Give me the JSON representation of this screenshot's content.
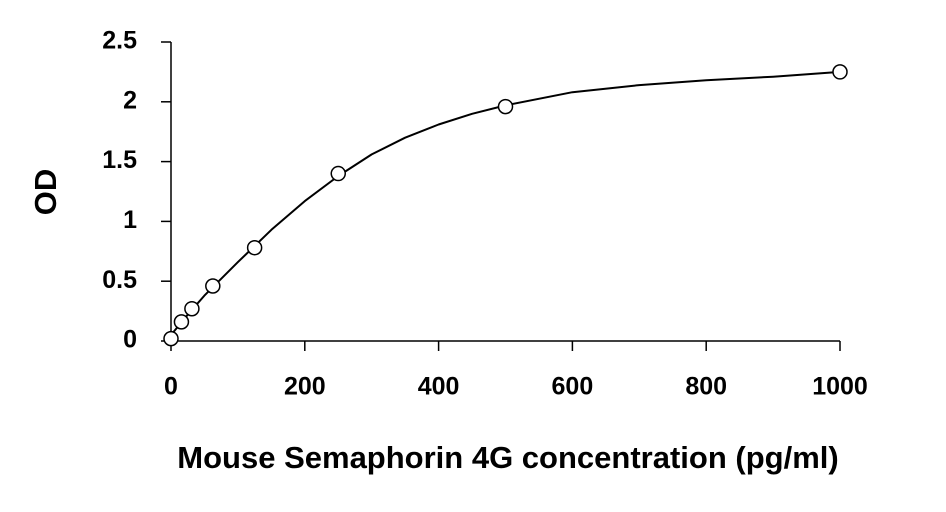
{
  "chart_data": {
    "type": "scatter",
    "x_label": "Mouse Semaphorin 4G concentration (pg/ml)",
    "y_label": "OD",
    "x": [
      0,
      15.6,
      31.25,
      62.5,
      125,
      250,
      500,
      1000
    ],
    "values": [
      0.02,
      0.16,
      0.27,
      0.46,
      0.78,
      1.4,
      1.96,
      2.25
    ],
    "color": "#000000",
    "curve": {
      "x": [
        0,
        25,
        50,
        100,
        150,
        200,
        250,
        300,
        350,
        400,
        450,
        500,
        600,
        700,
        800,
        900,
        1000
      ],
      "values": [
        0.05,
        0.22,
        0.38,
        0.66,
        0.93,
        1.17,
        1.38,
        1.56,
        1.7,
        1.81,
        1.9,
        1.97,
        2.08,
        2.14,
        2.18,
        2.21,
        2.25
      ]
    },
    "xlim": [
      0,
      1000
    ],
    "xticks": [
      0,
      200,
      400,
      600,
      800,
      1000
    ],
    "ylim": [
      0,
      2.5
    ],
    "yticks": [
      0,
      0.5,
      1,
      1.5,
      2,
      2.5
    ]
  }
}
